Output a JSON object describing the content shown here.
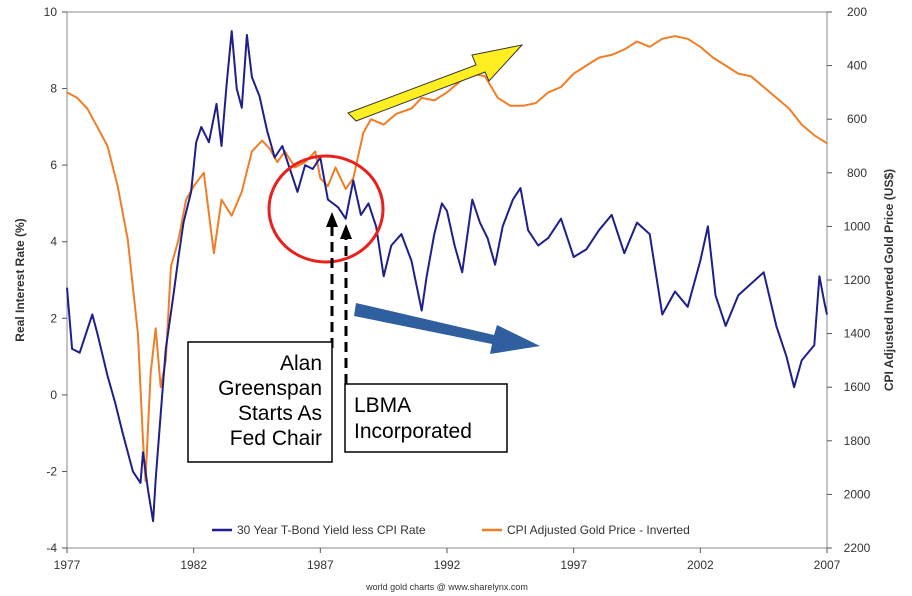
{
  "chart_data": {
    "type": "line",
    "title": "",
    "xlabel": "",
    "ylabel": "Real Interest Rate (%)",
    "y2label": "CPI Adjusted Inverted Gold Price (US$)",
    "xlim": [
      1977,
      2007
    ],
    "ylim": [
      -4,
      10
    ],
    "y2lim": [
      200,
      2200
    ],
    "y2_inverted": true,
    "grid": false,
    "legend": "bottom-center",
    "x_ticks": [
      "1977",
      "1982",
      "1987",
      "1992",
      "1997",
      "2002",
      "2007"
    ],
    "y_ticks": [
      "10",
      "8",
      "6",
      "4",
      "2",
      "0",
      "-2",
      "-4"
    ],
    "y2_ticks": [
      "200",
      "400",
      "600",
      "800",
      "1000",
      "1200",
      "1400",
      "1600",
      "1800",
      "2000",
      "2200"
    ],
    "series": [
      {
        "name": "30 Year T-Bond Yield less CPI Rate",
        "color": "#1f1f8c",
        "axis": "left",
        "x": [
          1977.0,
          1977.2,
          1977.5,
          1978.0,
          1978.2,
          1978.6,
          1978.9,
          1979.2,
          1979.6,
          1979.9,
          1980.0,
          1980.2,
          1980.4,
          1980.5,
          1980.7,
          1980.9,
          1981.2,
          1981.4,
          1981.6,
          1981.9,
          1982.1,
          1982.3,
          1982.6,
          1982.9,
          1983.1,
          1983.3,
          1983.5,
          1983.7,
          1983.9,
          1984.1,
          1984.3,
          1984.6,
          1984.9,
          1985.2,
          1985.5,
          1985.8,
          1986.1,
          1986.4,
          1986.7,
          1987.0,
          1987.3,
          1987.7,
          1988.0,
          1988.3,
          1988.6,
          1988.9,
          1989.2,
          1989.5,
          1989.8,
          1990.2,
          1990.6,
          1991.0,
          1991.2,
          1991.5,
          1991.8,
          1992.0,
          1992.3,
          1992.6,
          1993.0,
          1993.3,
          1993.6,
          1993.9,
          1994.2,
          1994.6,
          1994.9,
          1995.2,
          1995.6,
          1996.0,
          1996.5,
          1997.0,
          1997.5,
          1998.0,
          1998.5,
          1999.0,
          1999.5,
          2000.0,
          2000.5,
          2001.0,
          2001.5,
          2002.0,
          2002.3,
          2002.6,
          2003.0,
          2003.5,
          2004.0,
          2004.5,
          2005.0,
          2005.4,
          2005.7,
          2006.0,
          2006.5,
          2006.7,
          2006.9,
          2007.0
        ],
        "values": [
          2.8,
          1.2,
          1.1,
          2.1,
          1.6,
          0.5,
          -0.2,
          -1.0,
          -2.0,
          -2.3,
          -1.5,
          -2.5,
          -3.3,
          -2.2,
          -0.5,
          1.2,
          2.6,
          3.6,
          4.5,
          5.3,
          6.6,
          7.0,
          6.6,
          7.6,
          6.5,
          8.1,
          9.5,
          8.0,
          7.5,
          9.4,
          8.3,
          7.8,
          6.9,
          6.2,
          6.5,
          5.9,
          5.3,
          6.0,
          5.9,
          6.2,
          5.1,
          4.9,
          4.6,
          5.6,
          4.7,
          5.0,
          4.4,
          3.1,
          3.9,
          4.2,
          3.5,
          2.2,
          3.1,
          4.2,
          5.0,
          4.8,
          3.9,
          3.2,
          5.1,
          4.5,
          4.1,
          3.4,
          4.4,
          5.1,
          5.4,
          4.3,
          3.9,
          4.1,
          4.6,
          3.6,
          3.8,
          4.3,
          4.7,
          3.7,
          4.5,
          4.2,
          2.1,
          2.7,
          2.3,
          3.5,
          4.4,
          2.6,
          1.8,
          2.6,
          2.9,
          3.2,
          1.8,
          1.0,
          0.2,
          0.9,
          1.3,
          3.1,
          2.4,
          2.1
        ]
      },
      {
        "name": "CPI Adjusted Gold Price - Inverted",
        "color": "#f07e26",
        "axis": "right",
        "x": [
          1977.0,
          1977.4,
          1977.8,
          1978.2,
          1978.6,
          1979.0,
          1979.4,
          1979.8,
          1980.0,
          1980.1,
          1980.3,
          1980.5,
          1980.7,
          1980.9,
          1981.1,
          1981.4,
          1981.7,
          1982.0,
          1982.4,
          1982.8,
          1983.1,
          1983.5,
          1983.9,
          1984.3,
          1984.7,
          1985.0,
          1985.3,
          1985.6,
          1986.0,
          1986.4,
          1986.8,
          1987.0,
          1987.3,
          1987.6,
          1988.0,
          1988.3,
          1988.7,
          1989.0,
          1989.5,
          1990.0,
          1990.6,
          1991.0,
          1991.5,
          1992.0,
          1992.5,
          1993.0,
          1993.5,
          1994.0,
          1994.5,
          1995.0,
          1995.5,
          1996.0,
          1996.5,
          1997.0,
          1997.5,
          1998.0,
          1998.5,
          1999.0,
          1999.5,
          2000.0,
          2000.5,
          2001.0,
          2001.5,
          2002.0,
          2002.5,
          2003.0,
          2003.5,
          2004.0,
          2004.5,
          2005.0,
          2005.5,
          2006.0,
          2006.5,
          2007.0
        ],
        "values": [
          500,
          520,
          560,
          630,
          700,
          850,
          1050,
          1400,
          1800,
          1950,
          1550,
          1380,
          1600,
          1500,
          1150,
          1050,
          900,
          850,
          800,
          1100,
          900,
          960,
          870,
          720,
          680,
          710,
          760,
          720,
          780,
          760,
          720,
          820,
          850,
          780,
          860,
          820,
          650,
          600,
          620,
          580,
          560,
          520,
          530,
          500,
          460,
          430,
          440,
          520,
          550,
          550,
          540,
          500,
          480,
          430,
          400,
          370,
          360,
          340,
          310,
          330,
          300,
          290,
          300,
          330,
          370,
          400,
          430,
          440,
          480,
          520,
          560,
          620,
          660,
          690
        ]
      }
    ],
    "annotations": [
      {
        "label": "Alan Greenspan Starts As Fed Chair",
        "x": 1987.6
      },
      {
        "label": "LBMA Incorporated",
        "x": 1988.1
      }
    ]
  },
  "annotations": {
    "greenspan_lines": [
      "Alan",
      "Greenspan",
      "Starts As",
      "Fed Chair"
    ],
    "lbma_lines": [
      "LBMA",
      "Incorporated"
    ]
  },
  "credit": "world gold charts @ www.sharelynx.com",
  "colors": {
    "arrow_up": "#ffee22",
    "arrow_down": "#2f5f9e",
    "circle": "#e8201e"
  }
}
